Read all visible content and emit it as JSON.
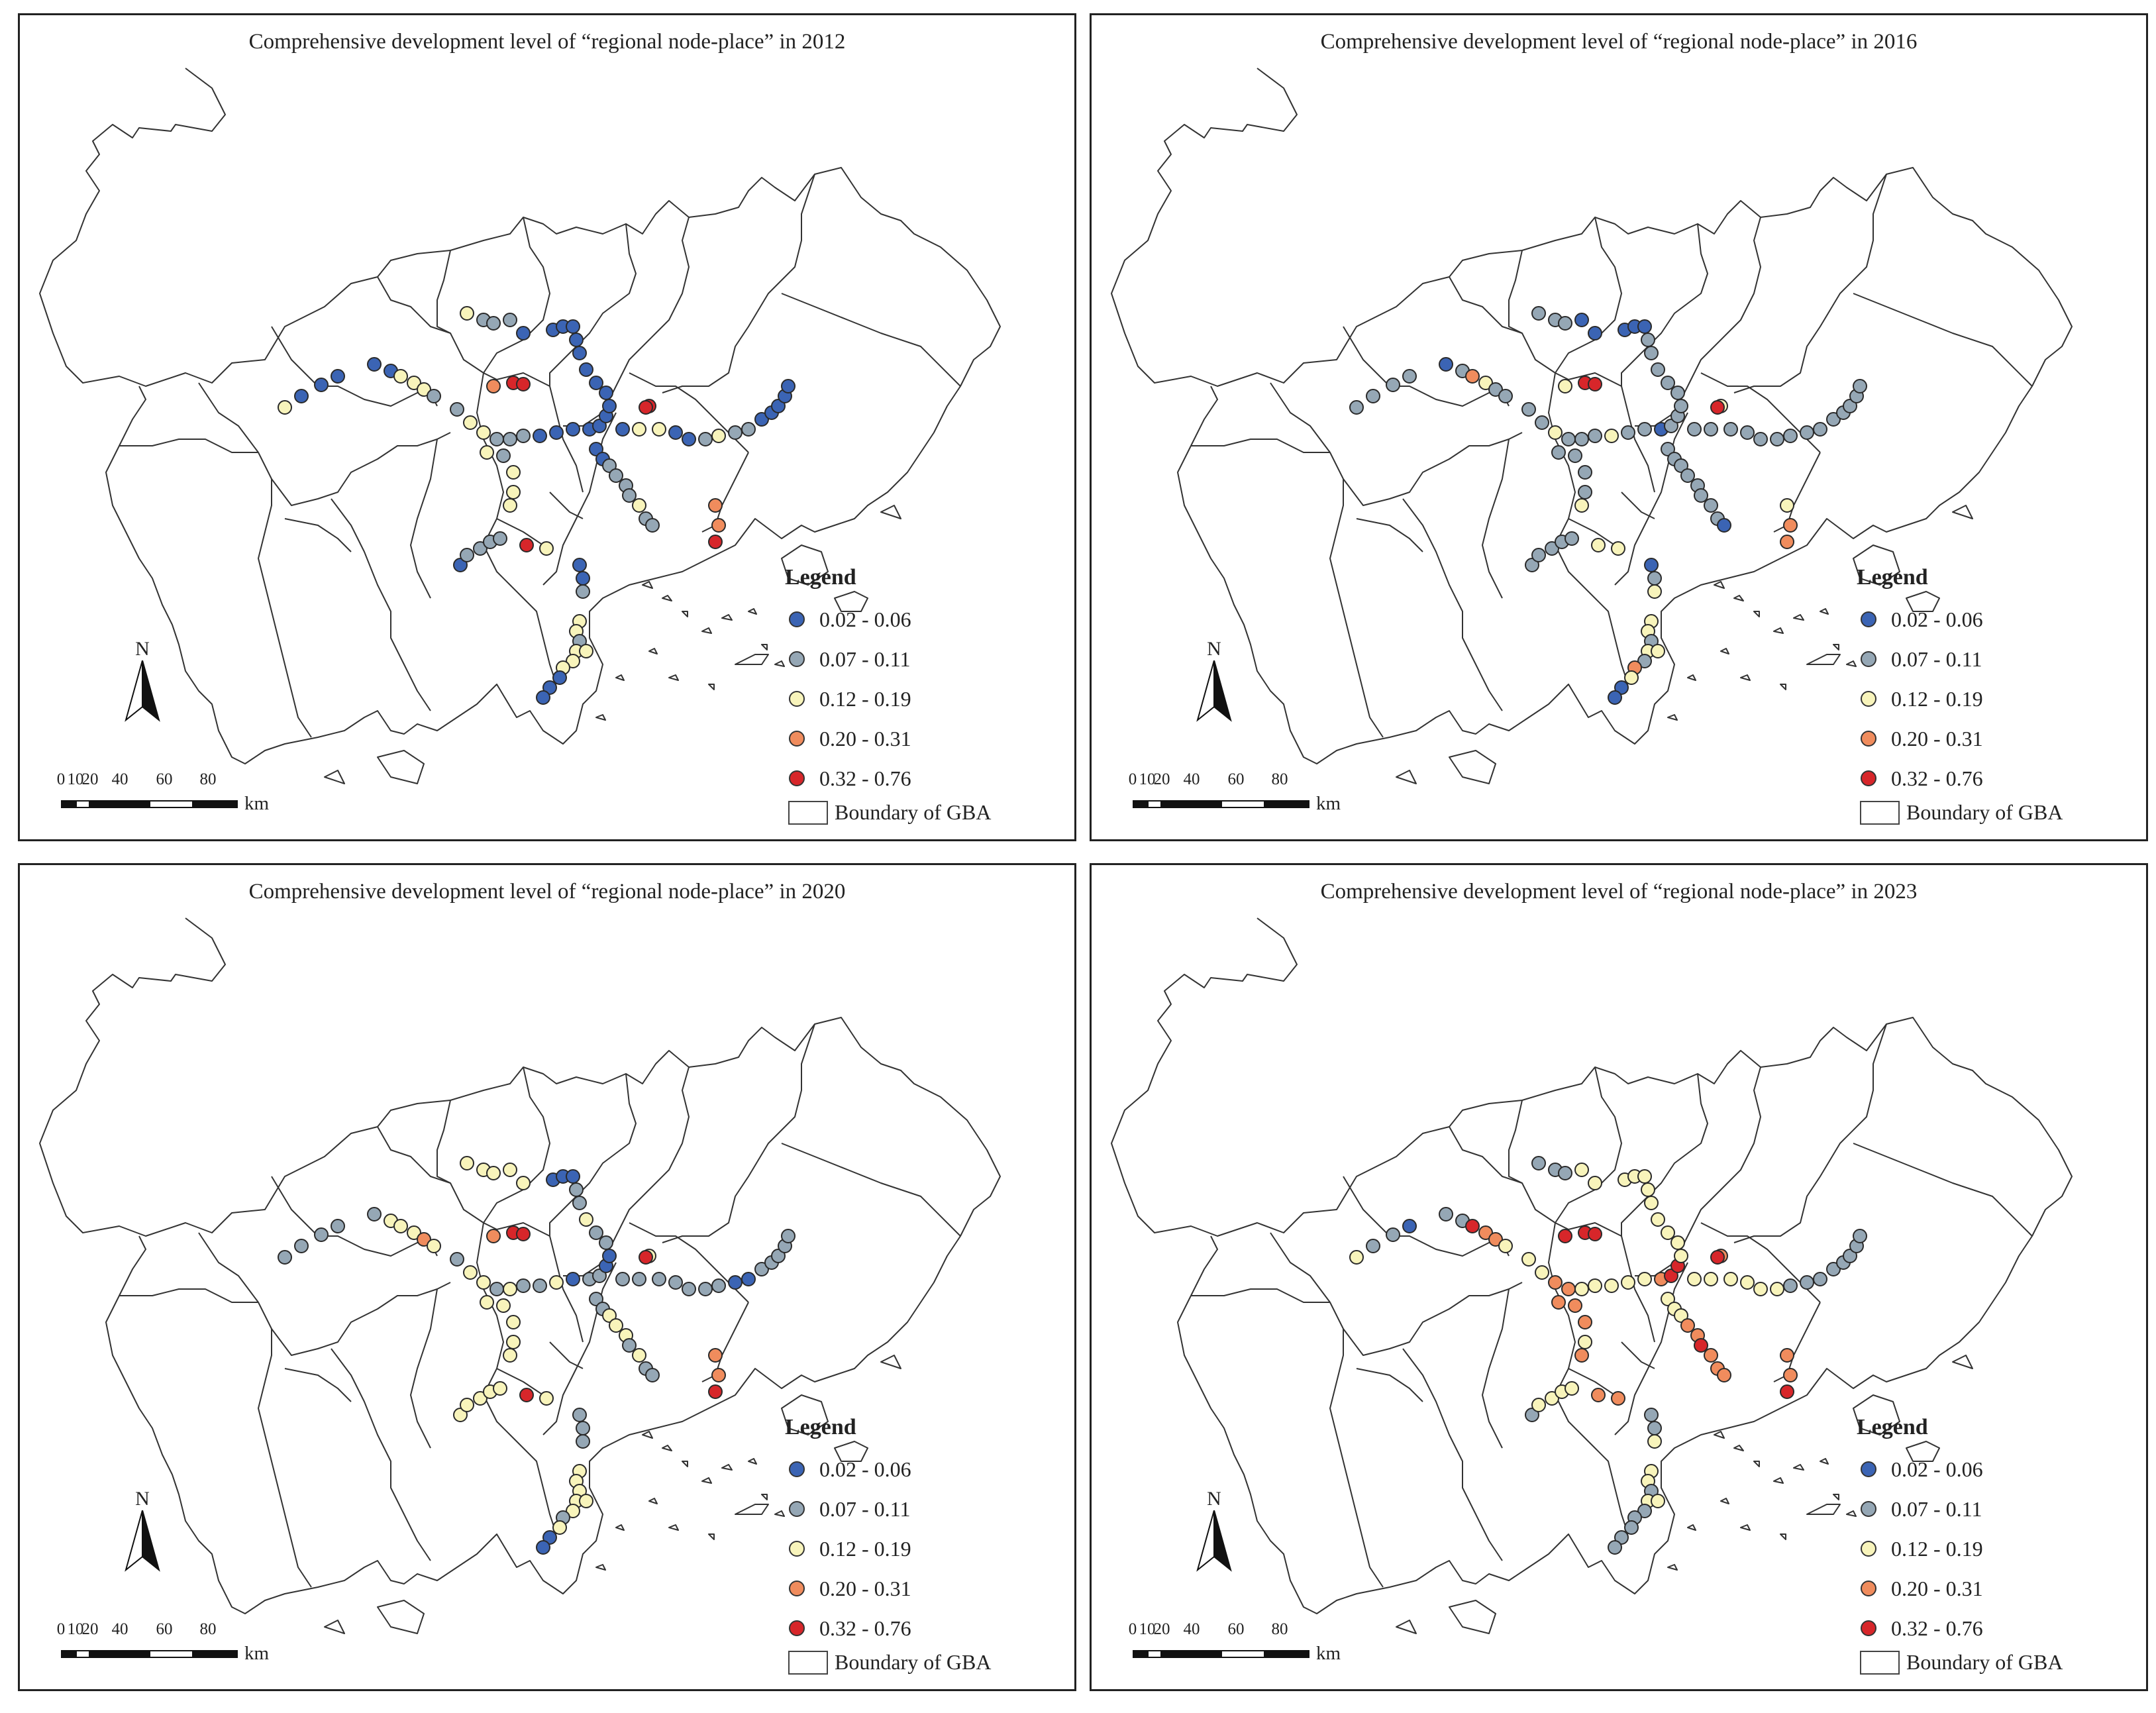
{
  "panels": [
    {
      "title": "Comprehensive development level of “regional node-place” in 2012",
      "year": "2012"
    },
    {
      "title": "Comprehensive development level of “regional node-place” in 2016",
      "year": "2016"
    },
    {
      "title": "Comprehensive development level of “regional node-place” in 2020",
      "year": "2020"
    },
    {
      "title": "Comprehensive development level of “regional node-place” in 2023",
      "year": "2023"
    }
  ],
  "legend": {
    "title": "Legend",
    "classes": [
      {
        "label": "0.02 - 0.06",
        "color": "#3b64b4"
      },
      {
        "label": "0.07 - 0.11",
        "color": "#95a7b5"
      },
      {
        "label": "0.12 - 0.19",
        "color": "#f8f4bb"
      },
      {
        "label": "0.20 - 0.31",
        "color": "#f08c5d"
      },
      {
        "label": "0.32 - 0.76",
        "color": "#d7262a"
      }
    ],
    "boundary_label": "Boundary of GBA"
  },
  "north_arrow": {
    "letter": "N"
  },
  "scale_bar": {
    "ticks": [
      "0",
      "10",
      "20",
      "40",
      "60",
      "80"
    ],
    "unit": "km"
  }
}
